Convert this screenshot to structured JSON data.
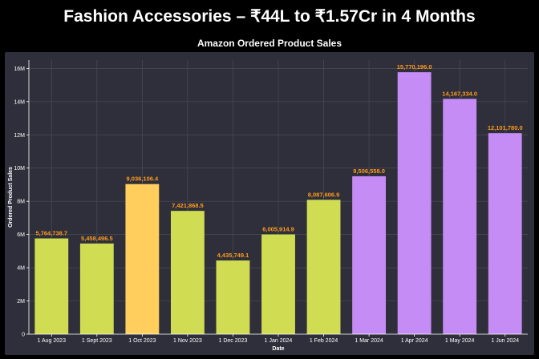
{
  "header": {
    "title": "Fashion Accessories – ₹44L to ₹1.57Cr in 4 Months"
  },
  "chart_data": {
    "type": "bar",
    "title": "Amazon Ordered Product Sales",
    "xlabel": "Date",
    "ylabel": "Ordered Product Sales",
    "ylim": [
      0,
      16500000
    ],
    "yticks": [
      0,
      2000000,
      4000000,
      6000000,
      8000000,
      10000000,
      12000000,
      14000000,
      16000000
    ],
    "ytick_labels": [
      "0",
      "2M",
      "4M",
      "6M",
      "8M",
      "10M",
      "12M",
      "14M",
      "16M"
    ],
    "grid": true,
    "categories": [
      "1 Aug 2023",
      "1 Sept 2023",
      "1 Oct 2023",
      "1 Nov 2023",
      "1 Dec 2023",
      "1 Jan 2024",
      "1 Feb 2024",
      "1 Mar 2024",
      "1 Apr 2024",
      "1 May 2024",
      "1 Jun 2024"
    ],
    "values": [
      5764738.7,
      5458496.5,
      9036106.4,
      7421868.5,
      4435749.1,
      6005914.9,
      8087606.9,
      9506558.0,
      15770196.0,
      14167334.0,
      12101780.0
    ],
    "value_labels": [
      "5,764,738.7",
      "5,458,496.5",
      "9,036,106.4",
      "7,421,868.5",
      "4,435,749.1",
      "6,005,914.9",
      "8,087,606.9",
      "9,506,558.0",
      "15,770,196.0",
      "14,167,334.0",
      "12,101,780.0"
    ],
    "bar_colors": [
      "#d0dc52",
      "#d0dc52",
      "#ffce5c",
      "#d0dc52",
      "#d0dc52",
      "#d0dc52",
      "#d0dc52",
      "#c58cf5",
      "#c58cf5",
      "#c58cf5",
      "#c58cf5"
    ],
    "colors": {
      "plot_background": "#2e2f3a",
      "grid": "#4a4b58",
      "value_label": "#ff9a1f"
    }
  }
}
